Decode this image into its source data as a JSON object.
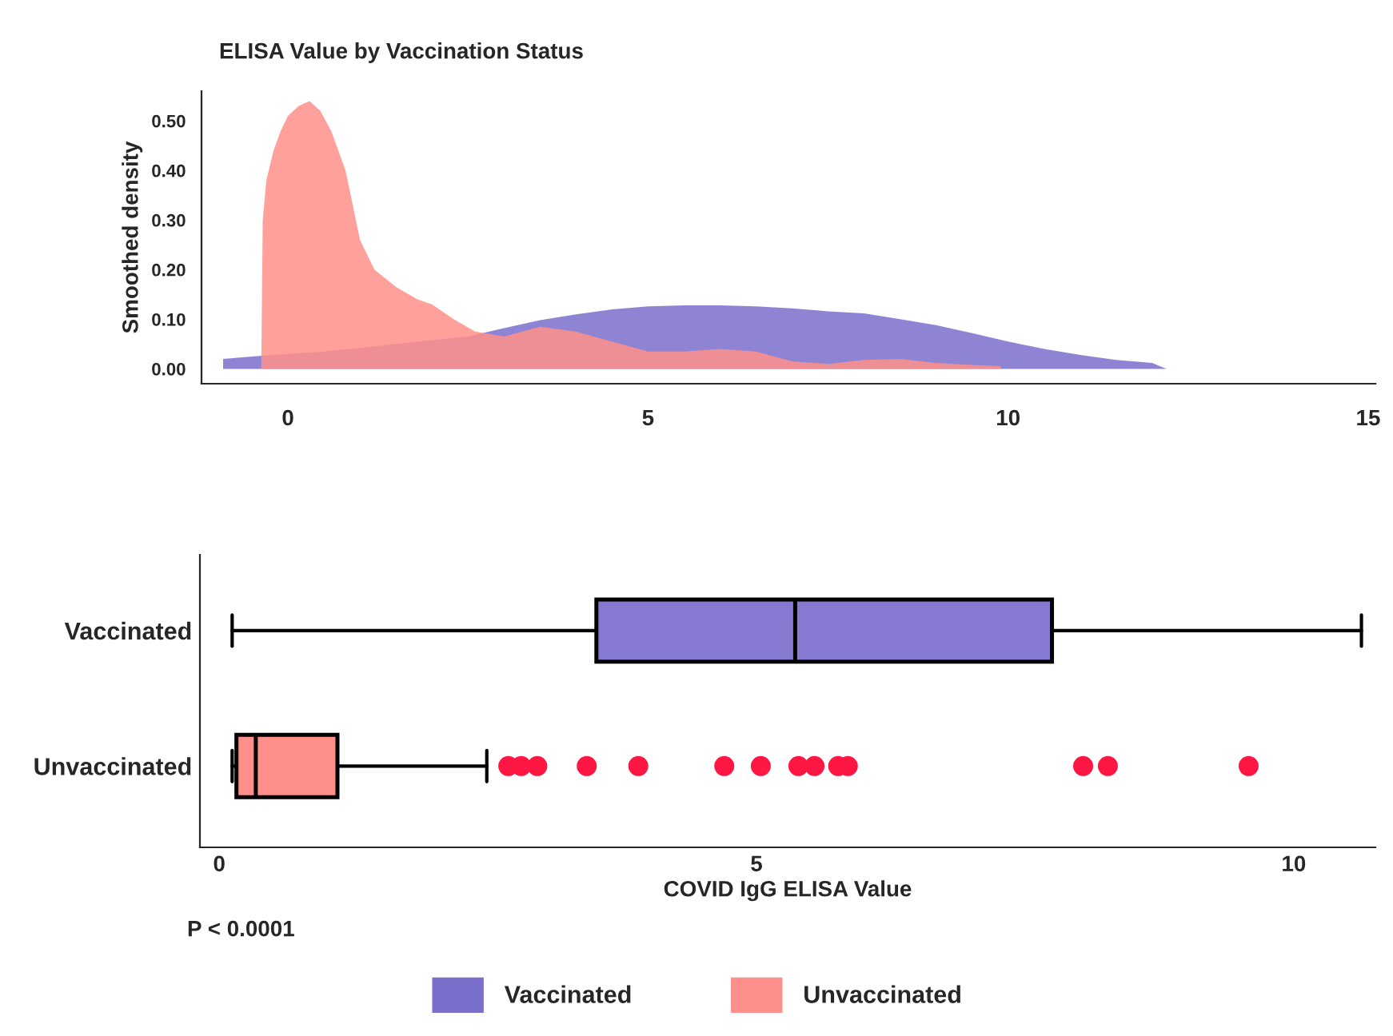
{
  "chart_data": [
    {
      "type": "area",
      "title": "ELISA Value by Vaccination Status",
      "ylabel": "Smoothed density",
      "series": [
        {
          "name": "Vaccinated",
          "color": "#7b6fcc",
          "x": [
            -0.9,
            -0.5,
            0,
            0.5,
            1,
            1.5,
            2,
            2.5,
            3,
            3.5,
            4,
            4.5,
            5,
            5.5,
            6,
            6.5,
            7,
            7.5,
            8,
            8.5,
            9,
            9.5,
            10,
            10.5,
            11,
            11.5,
            12,
            12.2
          ],
          "values": [
            0.02,
            0.025,
            0.03,
            0.035,
            0.042,
            0.05,
            0.058,
            0.065,
            0.082,
            0.098,
            0.11,
            0.12,
            0.126,
            0.128,
            0.128,
            0.126,
            0.122,
            0.116,
            0.112,
            0.1,
            0.088,
            0.072,
            0.055,
            0.04,
            0.028,
            0.018,
            0.012,
            0.0
          ]
        },
        {
          "name": "Unvaccinated",
          "color": "#ff8f8a",
          "x": [
            -0.37,
            -0.35,
            -0.3,
            -0.2,
            -0.1,
            0,
            0.15,
            0.3,
            0.45,
            0.6,
            0.8,
            1.0,
            1.2,
            1.5,
            1.8,
            2.0,
            2.3,
            2.6,
            3.0,
            3.5,
            4.0,
            4.5,
            5.0,
            5.5,
            6.0,
            6.5,
            7.0,
            7.5,
            8.0,
            8.5,
            9.0,
            9.5,
            9.9
          ],
          "values": [
            0.0,
            0.3,
            0.38,
            0.44,
            0.48,
            0.51,
            0.53,
            0.54,
            0.52,
            0.48,
            0.4,
            0.26,
            0.2,
            0.165,
            0.14,
            0.13,
            0.1,
            0.075,
            0.065,
            0.085,
            0.075,
            0.055,
            0.035,
            0.035,
            0.04,
            0.035,
            0.015,
            0.01,
            0.018,
            0.02,
            0.012,
            0.008,
            0.005
          ]
        }
      ],
      "xlim": [
        -1.2,
        15.1
      ],
      "xticks": [
        0,
        5,
        10,
        15
      ],
      "ylim": [
        -0.03,
        0.56
      ],
      "yticks": [
        {
          "value": 0,
          "label": "0.00"
        },
        {
          "value": 0.1,
          "label": "0.10"
        },
        {
          "value": 0.2,
          "label": "0.20"
        },
        {
          "value": 0.3,
          "label": "0.30"
        },
        {
          "value": 0.4,
          "label": "0.40"
        },
        {
          "value": 0.5,
          "label": "0.50"
        }
      ],
      "legend": "bottom"
    },
    {
      "type": "box",
      "orientation": "horizontal",
      "xlabel": "COVID IgG ELISA Value",
      "categories": [
        "Vaccinated",
        "Unvaccinated"
      ],
      "colors": [
        "#8579d1",
        "#ff8f8a"
      ],
      "boxes": [
        {
          "low": 0.12,
          "q1": 3.51,
          "median": 5.36,
          "q3": 7.75,
          "high": 10.63
        },
        {
          "low": 0.12,
          "q1": 0.16,
          "median": 0.34,
          "q3": 1.1,
          "high": 2.49,
          "outliers": [
            2.69,
            2.81,
            2.96,
            3.42,
            3.9,
            4.7,
            5.04,
            5.39,
            5.54,
            5.76,
            5.85,
            8.04,
            8.27,
            9.58
          ]
        }
      ],
      "xlim": [
        -0.18,
        10.76
      ],
      "xticks": [
        0,
        5,
        10
      ],
      "annotations": [
        "P < 0.0001"
      ]
    }
  ]
}
